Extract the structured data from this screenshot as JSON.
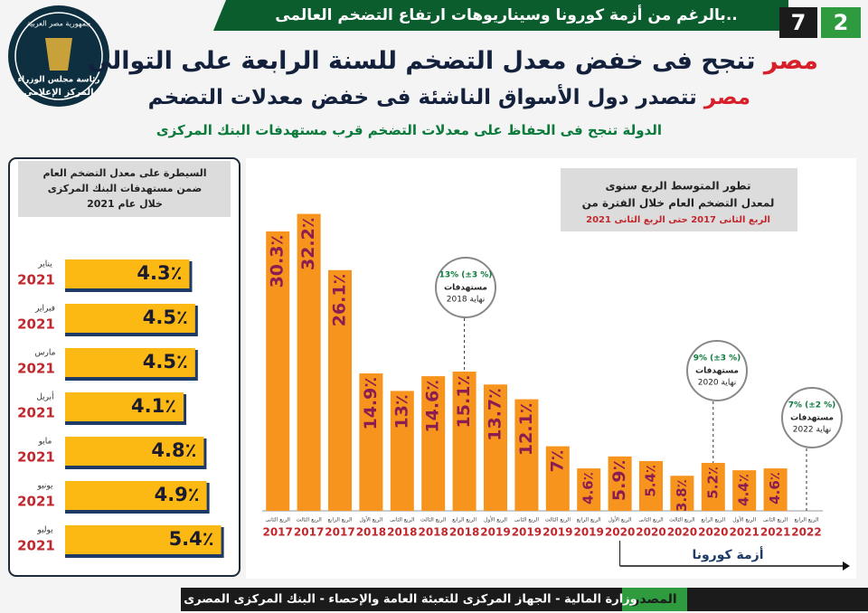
{
  "header": {
    "banner": "بالرغم من أزمة كورونا وسيناريوهات ارتفاع التضخم العالمى..",
    "page_total": "7",
    "page_current": "2",
    "title_highlight": "مصر",
    "title": "تنجح فى خفض معدل التضخم للسنة الرابعة على التوالى",
    "subtitle_highlight": "مصر",
    "subtitle": "تتصدر دول الأسواق الناشئة فى خفض معدلات التضخم",
    "tagline": "الدولة تنجح فى الحفاظ على معدلات التضخم قرب مستهدفات البنك المركزى",
    "logo": [
      "جمهورية مصر العربية",
      "رئاسة مجلس الوزراء",
      "المركز الإعلامى"
    ]
  },
  "chart_data": [
    {
      "type": "hbar",
      "title": [
        "السيطرة على معدل التضخم العام",
        "ضمن مستهدفات البنك المركزى",
        "خلال عام 2021"
      ],
      "categories": [
        "يناير",
        "فبراير",
        "مارس",
        "أبريل",
        "مايو",
        "يونيو",
        "يوليو"
      ],
      "category_groups": [
        "2021",
        "2021",
        "2021",
        "2021",
        "2021",
        "2021",
        "2021"
      ],
      "values": [
        4.3,
        4.5,
        4.5,
        4.1,
        4.8,
        4.9,
        5.4
      ],
      "value_labels": [
        "4.3٪",
        "4.5٪",
        "4.5٪",
        "4.1٪",
        "4.8٪",
        "4.9٪",
        "5.4٪"
      ],
      "color": "#fdb913",
      "xlim": [
        0,
        5.6
      ]
    },
    {
      "type": "bar",
      "title": [
        "تطور المتوسط الربع سنوى",
        "لمعدل التضخم العام خلال الفترة من"
      ],
      "subtitle": "الربع الثانى 2017 حتى الربع الثانى 2021",
      "categories": [
        "الربع الثانى",
        "الربع الثالث",
        "الربع الرابع",
        "الربع الأول",
        "الربع الثانى",
        "الربع الثالث",
        "الربع الرابع",
        "الربع الأول",
        "الربع الثانى",
        "الربع الثالث",
        "الربع الرابع",
        "الربع الأول",
        "الربع الثانى",
        "الربع الثالث",
        "الربع الرابع",
        "الربع الأول",
        "الربع الثانى",
        "الربع الرابع"
      ],
      "category_groups": [
        "2017",
        "2017",
        "2017",
        "2018",
        "2018",
        "2018",
        "2018",
        "2019",
        "2019",
        "2019",
        "2019",
        "2020",
        "2020",
        "2020",
        "2020",
        "2021",
        "2021",
        "2022"
      ],
      "values": [
        30.3,
        32.2,
        26.1,
        14.9,
        13,
        14.6,
        15.1,
        13.7,
        12.1,
        7,
        4.6,
        5.9,
        5.4,
        3.8,
        5.2,
        4.4,
        4.6,
        null
      ],
      "value_labels": [
        "30.3٪",
        "32.2٪",
        "26.1٪",
        "14.9٪",
        "13٪",
        "14.6٪",
        "15.1٪",
        "13.7٪",
        "12.1٪",
        "7٪",
        "4.6٪",
        "5.9٪",
        "5.4٪",
        "3.8٪",
        "5.2٪",
        "4.4٪",
        "4.6٪",
        null
      ],
      "color": "#f7941d",
      "ylim": [
        0,
        35
      ],
      "annotations": [
        {
          "target": "13% (±3 %)",
          "label": "مستهدفات",
          "period": "نهاية 2018"
        },
        {
          "target": "9% (±3 %)",
          "label": "مستهدفات",
          "period": "نهاية 2020"
        },
        {
          "target": "7% (±2 %)",
          "label": "مستهدفات",
          "period": "نهاية 2022"
        }
      ],
      "period_label": "أزمة كورونا"
    }
  ],
  "footer": {
    "source_label": "المصدر",
    "source": "وزارة المالية - الجهاز المركزى للتعبئة العامة والإحصاء - البنك المركزى المصرى"
  }
}
